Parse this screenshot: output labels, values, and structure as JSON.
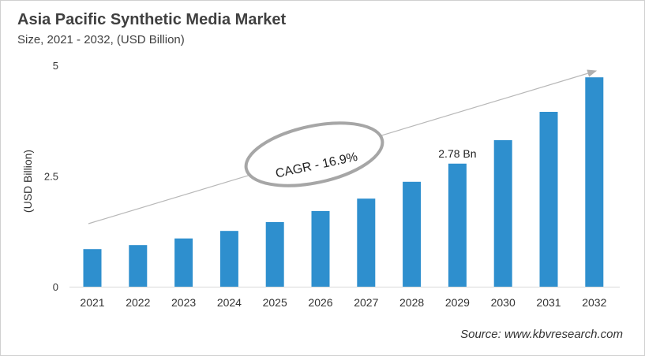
{
  "chart_data": {
    "type": "bar",
    "title": "Asia Pacific Synthetic Media Market",
    "subtitle": "Size, 2021 - 2032, (USD Billion)",
    "xlabel": "",
    "ylabel": "(USD Billion)",
    "categories": [
      "2021",
      "2022",
      "2023",
      "2024",
      "2025",
      "2026",
      "2027",
      "2028",
      "2029",
      "2030",
      "2031",
      "2032"
    ],
    "values": [
      0.85,
      0.94,
      1.09,
      1.26,
      1.46,
      1.71,
      1.99,
      2.37,
      2.78,
      3.31,
      3.95,
      4.73
    ],
    "ylim": [
      0,
      5
    ],
    "yticks": [
      "0",
      "2.5",
      "5"
    ],
    "grid": false,
    "bar_color": "#2e8fce",
    "data_labels": [
      {
        "category": "2029",
        "text": "2.78 Bn"
      }
    ],
    "annotation": "CAGR - 16.9%",
    "source": "Source: www.kbvresearch.com"
  }
}
